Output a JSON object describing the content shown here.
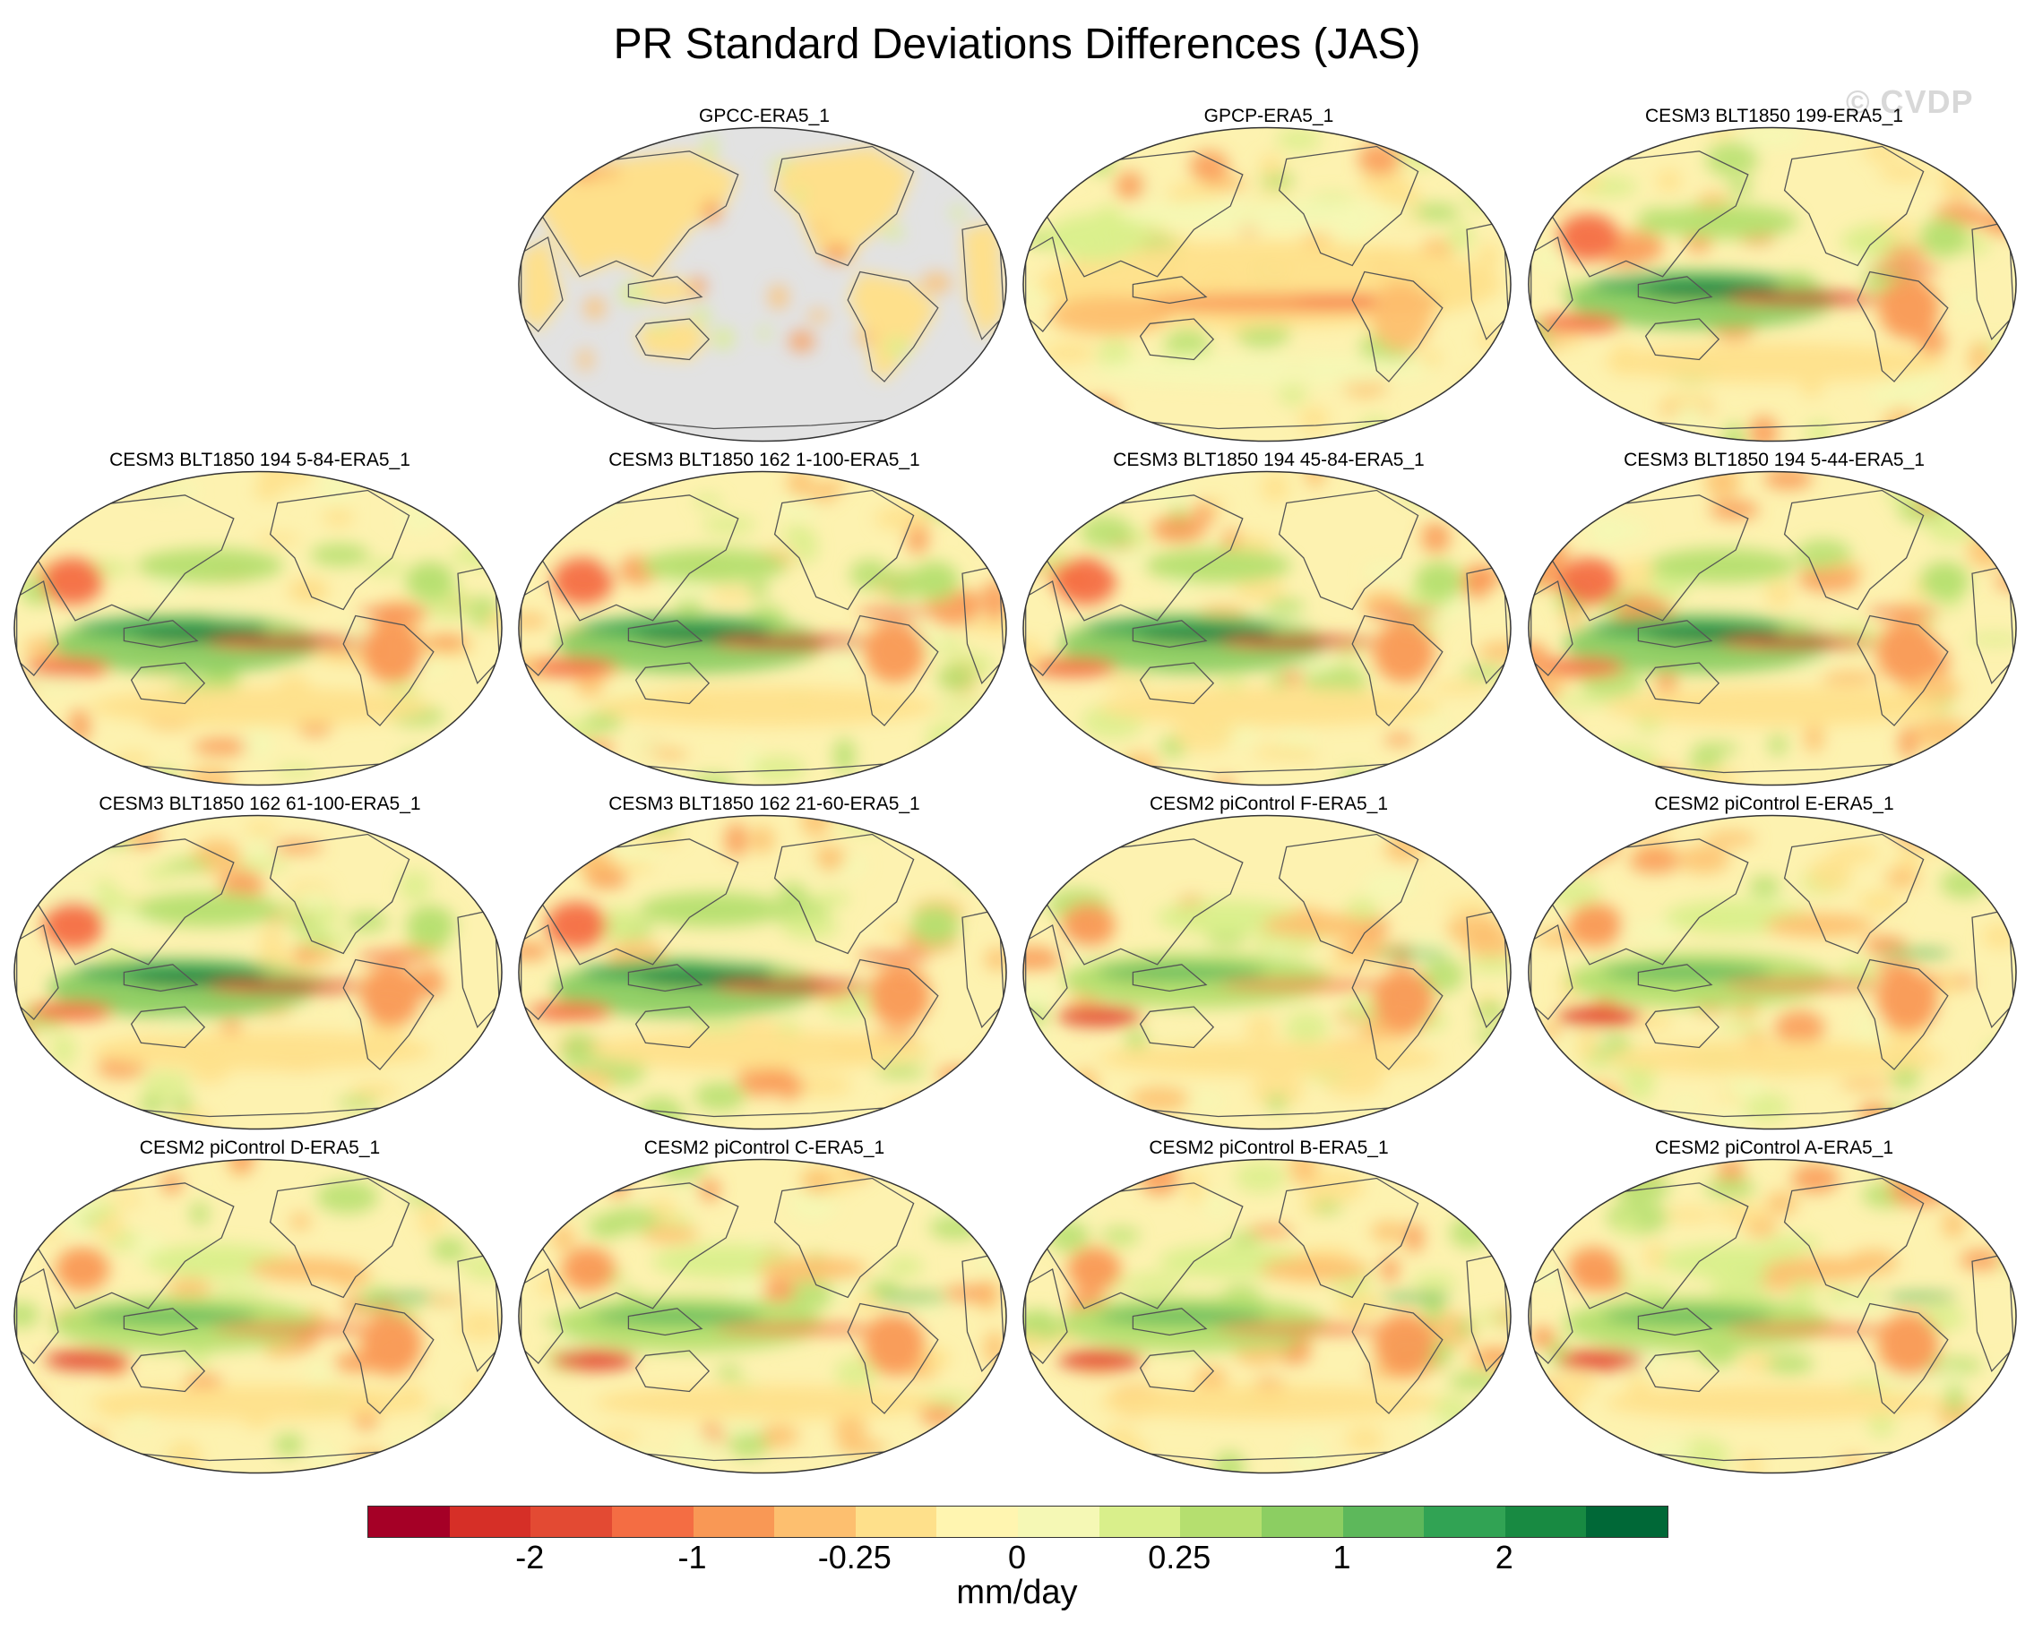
{
  "title": "PR Standard Deviations Differences (JAS)",
  "watermark": "© CVDP",
  "colors": {
    "land_mask": "#e2e2e2",
    "coast": "#555555",
    "neutral": "#fdf2b0"
  },
  "panels": [
    {
      "label": "GPCC-ERA5_1",
      "variant": "land_only"
    },
    {
      "label": "GPCP-ERA5_1",
      "variant": "obs"
    },
    {
      "label": "CESM3 BLT1850 199-ERA5_1",
      "variant": "model_strong"
    },
    {
      "label": "CESM3 BLT1850 194 5-84-ERA5_1",
      "variant": "model_strong"
    },
    {
      "label": "CESM3 BLT1850 162 1-100-ERA5_1",
      "variant": "model_strong"
    },
    {
      "label": "CESM3 BLT1850 194 45-84-ERA5_1",
      "variant": "model_strong"
    },
    {
      "label": "CESM3 BLT1850 194 5-44-ERA5_1",
      "variant": "model_strong"
    },
    {
      "label": "CESM3 BLT1850 162 61-100-ERA5_1",
      "variant": "model_strong"
    },
    {
      "label": "CESM3 BLT1850 162 21-60-ERA5_1",
      "variant": "model_strong"
    },
    {
      "label": "CESM2 piControl F-ERA5_1",
      "variant": "model_mild"
    },
    {
      "label": "CESM2 piControl E-ERA5_1",
      "variant": "model_mild"
    },
    {
      "label": "CESM2 piControl D-ERA5_1",
      "variant": "model_mild"
    },
    {
      "label": "CESM2 piControl C-ERA5_1",
      "variant": "model_mild"
    },
    {
      "label": "CESM2 piControl B-ERA5_1",
      "variant": "model_mild"
    },
    {
      "label": "CESM2 piControl A-ERA5_1",
      "variant": "model_mild"
    }
  ],
  "colorbar": {
    "units": "mm/day",
    "levels": [
      -2.5,
      -2,
      -1.5,
      -1,
      -0.5,
      -0.25,
      -0.1,
      0,
      0.1,
      0.25,
      0.5,
      1,
      1.5,
      2,
      2.5
    ],
    "colors": [
      "#a50026",
      "#d62f27",
      "#e34a33",
      "#f46d43",
      "#f99855",
      "#fdbf6f",
      "#fee08b",
      "#fff5b0",
      "#f5f8b5",
      "#d9ef8b",
      "#b5df6f",
      "#8cce62",
      "#5db85b",
      "#31a354",
      "#188a42",
      "#006837"
    ],
    "tick_labels": [
      {
        "text": "-2",
        "value": -2
      },
      {
        "text": "-1",
        "value": -1
      },
      {
        "text": "-0.25",
        "value": -0.25
      },
      {
        "text": "0",
        "value": 0
      },
      {
        "text": "0.25",
        "value": 0.25
      },
      {
        "text": "1",
        "value": 1
      },
      {
        "text": "2",
        "value": 2
      }
    ]
  }
}
